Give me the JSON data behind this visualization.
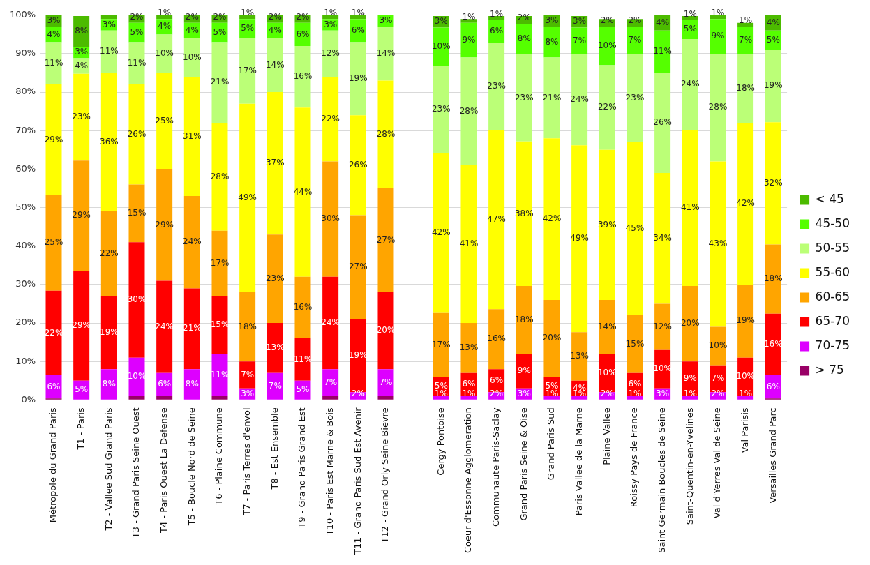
{
  "chart_data": {
    "type": "bar",
    "stacked": true,
    "categories": [
      "Métropole du Grand Paris",
      "T1 - Paris",
      "T2 - Vallee Sud Grand Paris",
      "T3 - Grand Paris Seine Ouest",
      "T4 - Paris Ouest La Defense",
      "T5 - Boucle Nord de Seine",
      "T6 - Plaine Commune",
      "T7 - Paris Terres d'envol",
      "T8 - Est Ensemble",
      "T9 - Grand Paris Grand Est",
      "T10 - Paris Est Marne & Bois",
      "T11 - Grand Paris Sud Est Avenir",
      "T12 - Grand Orly Seine Bievre",
      null,
      "Cergy Pontoise",
      "Coeur d'Essonne Agglomeration",
      "Communaute Paris-Saclay",
      "Grand Paris Seine & Oise",
      "Grand Paris Sud",
      "Paris Vallee de la Marne",
      "Plaine Vallee",
      "Roissy Pays de France",
      "Saint Germain Boucles de Seine",
      "Saint-Quentin-en-Yvelines",
      "Val d'Yerres Val de Seine",
      "Val Parisis",
      "Versailles Grand Parc"
    ],
    "ylim": [
      0,
      100
    ],
    "yticks": [
      {
        "value": 0,
        "label": "0%"
      },
      {
        "value": 10,
        "label": "10%"
      },
      {
        "value": 20,
        "label": "20%"
      },
      {
        "value": 30,
        "label": "30%"
      },
      {
        "value": 40,
        "label": "40%"
      },
      {
        "value": 50,
        "label": "50%"
      },
      {
        "value": 60,
        "label": "60%"
      },
      {
        "value": 70,
        "label": "70%"
      },
      {
        "value": 80,
        "label": "80%"
      },
      {
        "value": 90,
        "label": "90%"
      },
      {
        "value": 100,
        "label": "100%"
      }
    ],
    "grid": "y",
    "legend": "right",
    "series": [
      {
        "name": "> 75",
        "color": "#990066",
        "values": [
          0.4,
          null,
          null,
          1,
          1,
          null,
          1,
          null,
          null,
          null,
          1,
          null,
          1,
          null,
          null,
          null,
          null,
          null,
          null,
          null,
          null,
          null,
          null,
          null,
          null,
          null,
          0.4
        ],
        "value_labels": [
          null,
          null,
          null,
          null,
          null,
          null,
          null,
          null,
          null,
          null,
          null,
          null,
          null,
          null,
          null,
          null,
          null,
          null,
          null,
          null,
          null,
          null,
          null,
          null,
          null,
          null,
          null
        ]
      },
      {
        "name": "70-75",
        "color": "#dd00ff",
        "values": [
          6,
          5,
          8,
          10,
          6,
          8,
          11,
          3,
          7,
          5,
          7,
          2,
          7,
          null,
          1,
          1,
          2,
          3,
          1,
          1,
          2,
          1,
          3,
          1,
          2,
          1,
          6
        ],
        "value_labels": [
          "6%",
          "5%",
          "8%",
          "10%",
          "6%",
          "8%",
          "11%",
          "3%",
          "7%",
          "5%",
          "7%",
          "2%",
          "7%",
          null,
          "1%",
          "1%",
          "2%",
          "3%",
          "1%",
          "1%",
          "2%",
          "1%",
          "3%",
          "1%",
          "2%",
          "1%",
          "6%"
        ]
      },
      {
        "name": "65-70",
        "color": "#ff0000",
        "values": [
          22,
          28.6,
          19,
          30,
          24,
          21,
          15,
          7,
          13,
          11,
          24,
          19,
          20,
          null,
          5,
          6,
          6,
          9,
          5,
          4,
          10,
          6,
          10,
          9,
          7,
          10,
          16
        ],
        "value_labels": [
          "22%",
          "29%",
          "19%",
          "30%",
          "24%",
          "21%",
          "15%",
          "7%",
          "13%",
          "11%",
          "24%",
          "19%",
          "20%",
          null,
          "5%",
          "6%",
          "6%",
          "9%",
          "5%",
          "4%",
          "10%",
          "6%",
          "10%",
          "9%",
          "7%",
          "10%",
          "16%"
        ]
      },
      {
        "name": "60-65",
        "color": "#ffa500",
        "values": [
          24.8,
          28.6,
          22,
          15,
          29,
          24,
          17,
          18,
          23,
          16,
          30,
          27,
          27,
          null,
          16.6,
          13,
          15.6,
          17.6,
          20,
          12.6,
          14,
          15,
          12,
          19.6,
          10,
          19,
          18
        ],
        "value_labels": [
          "25%",
          "29%",
          "22%",
          "15%",
          "29%",
          "24%",
          "17%",
          "18%",
          "23%",
          "16%",
          "30%",
          "27%",
          "27%",
          null,
          "17%",
          "13%",
          "16%",
          "18%",
          "20%",
          "13%",
          "14%",
          "15%",
          "12%",
          "20%",
          "10%",
          "19%",
          "18%"
        ]
      },
      {
        "name": "55-60",
        "color": "#ffff00",
        "values": [
          28.8,
          22.6,
          36,
          26,
          25,
          31,
          28,
          49,
          37,
          44,
          22,
          26,
          28,
          null,
          41.6,
          41,
          46.6,
          37.6,
          42,
          48.6,
          39,
          45,
          34,
          40.6,
          43,
          42,
          31.8
        ],
        "value_labels": [
          "29%",
          "23%",
          "36%",
          "26%",
          "25%",
          "31%",
          "28%",
          "49%",
          "37%",
          "44%",
          "22%",
          "26%",
          "28%",
          null,
          "42%",
          "41%",
          "47%",
          "38%",
          "42%",
          "49%",
          "39%",
          "45%",
          "34%",
          "41%",
          "43%",
          "42%",
          "32%"
        ]
      },
      {
        "name": "50-55",
        "color": "#bbff77",
        "values": [
          11,
          4,
          11,
          11,
          10,
          10,
          21,
          17,
          14,
          16,
          12,
          19,
          14,
          null,
          22.6,
          28,
          22.6,
          22.6,
          21,
          23.6,
          22,
          23,
          26,
          23.6,
          28,
          18,
          18.8
        ],
        "value_labels": [
          "11%",
          "4%",
          "11%",
          "11%",
          "10%",
          "10%",
          "21%",
          "17%",
          "14%",
          "16%",
          "12%",
          "19%",
          "14%",
          null,
          "23%",
          "28%",
          "23%",
          "23%",
          "21%",
          "24%",
          "22%",
          "23%",
          "26%",
          "24%",
          "28%",
          "18%",
          "19%"
        ]
      },
      {
        "name": "45-50",
        "color": "#55ff00",
        "values": [
          4,
          3,
          3,
          5,
          4,
          4,
          5,
          5,
          4,
          6,
          3,
          6,
          3,
          null,
          10,
          9,
          6,
          8,
          8,
          7,
          10,
          7,
          11,
          5,
          9,
          7,
          5
        ],
        "value_labels": [
          "4%",
          "3%",
          "3%",
          "5%",
          "4%",
          "4%",
          "5%",
          "5%",
          "4%",
          "6%",
          "3%",
          "6%",
          "3%",
          null,
          "10%",
          "9%",
          "6%",
          "8%",
          "8%",
          "7%",
          "10%",
          "7%",
          "11%",
          "5%",
          "9%",
          "7%",
          "5%"
        ]
      },
      {
        "name": "< 45",
        "color": "#4cbb00",
        "values": [
          3,
          8,
          1,
          2,
          1,
          2,
          2,
          1,
          2,
          2,
          1,
          1,
          null,
          null,
          3,
          1,
          1,
          2,
          3,
          3,
          2,
          2,
          4,
          1,
          1,
          1,
          4
        ],
        "value_labels": [
          "3%",
          "8%",
          null,
          "2%",
          "1%",
          "2%",
          "2%",
          "1%",
          "2%",
          "2%",
          "1%",
          "1%",
          null,
          null,
          "3%",
          "1%",
          "1%",
          "2%",
          "3%",
          "3%",
          "2%",
          "2%",
          "4%",
          "1%",
          "1%",
          "1%",
          "4%"
        ]
      }
    ]
  }
}
